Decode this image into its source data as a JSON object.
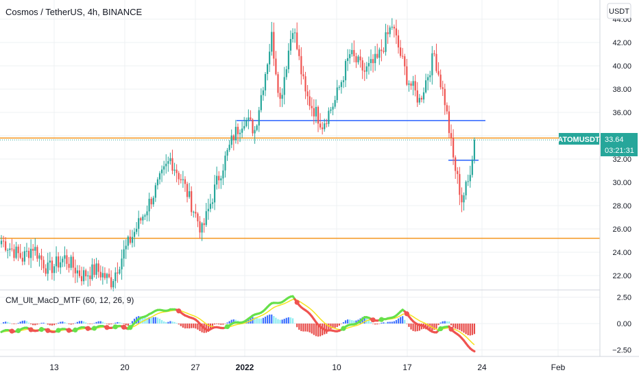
{
  "header": {
    "symbol_title": "Cosmos / TetherUS, 4h, BINANCE",
    "currency_label": "USDT"
  },
  "price_tag": {
    "ticker": "ATOMUSDT",
    "last_price": "33.64",
    "countdown": "03:21:31"
  },
  "indicator": {
    "title": "CM_Ult_MacD_MTF (60, 12, 26, 9)",
    "y_ticks": [
      "2.50",
      "0.00",
      "−2.50"
    ]
  },
  "colors": {
    "bull": "#26a69a",
    "bear": "#ef5350",
    "orange_line": "#f5951d",
    "blue_line": "#2962ff",
    "tag_bg": "#26a69a",
    "hist_pos_light": "#7fe9f0",
    "hist_pos_dark": "#2962ff",
    "hist_neg": "#e53935",
    "macd_up": "#66e04a",
    "macd_down": "#ef5350",
    "signal": "#f5e31d"
  },
  "chart_data": [
    {
      "type": "candlestick",
      "title": "Cosmos / TetherUS, 4h, BINANCE",
      "y_axis_ticks": [
        22,
        24,
        26,
        28,
        30,
        32,
        34,
        36,
        38,
        40,
        42,
        44
      ],
      "y_tick_labels": [
        "22.00",
        "24.00",
        "26.00",
        "28.00",
        "30.00",
        "32.00",
        "34.00",
        "36.00",
        "38.00",
        "40.00",
        "42.00",
        "44.00"
      ],
      "ylim": [
        20.5,
        45.5
      ],
      "x_tick_labels": [
        "13",
        "20",
        "27",
        "2022",
        "10",
        "17",
        "24",
        "Feb"
      ],
      "last_price": 33.64,
      "approx_path": [
        {
          "i": 0,
          "p": 25.0
        },
        {
          "i": 10,
          "p": 23.5
        },
        {
          "i": 15,
          "p": 24.5
        },
        {
          "i": 22,
          "p": 22.5
        },
        {
          "i": 30,
          "p": 23.5
        },
        {
          "i": 38,
          "p": 22.0
        },
        {
          "i": 45,
          "p": 22.5
        },
        {
          "i": 52,
          "p": 21.5
        },
        {
          "i": 58,
          "p": 24.0
        },
        {
          "i": 68,
          "p": 27.5
        },
        {
          "i": 80,
          "p": 32.0
        },
        {
          "i": 86,
          "p": 30.0
        },
        {
          "i": 95,
          "p": 25.8
        },
        {
          "i": 102,
          "p": 30.0
        },
        {
          "i": 110,
          "p": 34.0
        },
        {
          "i": 115,
          "p": 35.5
        },
        {
          "i": 120,
          "p": 34.5
        },
        {
          "i": 128,
          "p": 42.5
        },
        {
          "i": 132,
          "p": 37.0
        },
        {
          "i": 138,
          "p": 43.5
        },
        {
          "i": 144,
          "p": 37.5
        },
        {
          "i": 152,
          "p": 35.0
        },
        {
          "i": 158,
          "p": 37.0
        },
        {
          "i": 165,
          "p": 41.0
        },
        {
          "i": 172,
          "p": 39.5
        },
        {
          "i": 178,
          "p": 40.5
        },
        {
          "i": 185,
          "p": 43.5
        },
        {
          "i": 192,
          "p": 39.0
        },
        {
          "i": 198,
          "p": 37.0
        },
        {
          "i": 205,
          "p": 41.0
        },
        {
          "i": 210,
          "p": 37.0
        },
        {
          "i": 214,
          "p": 32.0
        },
        {
          "i": 218,
          "p": 28.5
        },
        {
          "i": 221,
          "p": 30.0
        },
        {
          "i": 224,
          "p": 33.64
        }
      ],
      "horizontal_lines": [
        {
          "name": "resistance",
          "price": 33.8,
          "color": "orange",
          "extends": "full-width"
        },
        {
          "name": "support",
          "price": 25.2,
          "color": "orange",
          "extends": "full-width"
        },
        {
          "name": "range-level",
          "price": 35.3,
          "color": "blue",
          "extends": "segment"
        },
        {
          "name": "short-level",
          "price": 31.9,
          "color": "blue",
          "extends": "segment"
        }
      ]
    },
    {
      "type": "macd",
      "title": "CM_Ult_MacD_MTF (60, 12, 26, 9)",
      "y_axis_ticks": [
        2.5,
        0,
        -2.5
      ],
      "ylim": [
        -3.2,
        3.2
      ],
      "approx_macd": [
        {
          "i": 0,
          "v": -0.8
        },
        {
          "i": 12,
          "v": -0.5
        },
        {
          "i": 22,
          "v": -0.7
        },
        {
          "i": 32,
          "v": -0.6
        },
        {
          "i": 42,
          "v": -0.4
        },
        {
          "i": 52,
          "v": -0.3
        },
        {
          "i": 60,
          "v": -0.4
        },
        {
          "i": 70,
          "v": 1.0
        },
        {
          "i": 80,
          "v": 1.4
        },
        {
          "i": 88,
          "v": 0.8
        },
        {
          "i": 98,
          "v": -0.6
        },
        {
          "i": 108,
          "v": -0.2
        },
        {
          "i": 118,
          "v": 0.5
        },
        {
          "i": 128,
          "v": 1.8
        },
        {
          "i": 138,
          "v": 2.5
        },
        {
          "i": 146,
          "v": 0.8
        },
        {
          "i": 154,
          "v": -0.8
        },
        {
          "i": 162,
          "v": -0.5
        },
        {
          "i": 172,
          "v": 0.5
        },
        {
          "i": 182,
          "v": 0.3
        },
        {
          "i": 190,
          "v": 1.2
        },
        {
          "i": 198,
          "v": -0.2
        },
        {
          "i": 206,
          "v": -0.8
        },
        {
          "i": 212,
          "v": -0.2
        },
        {
          "i": 218,
          "v": -1.5
        },
        {
          "i": 224,
          "v": -2.6
        }
      ]
    }
  ]
}
